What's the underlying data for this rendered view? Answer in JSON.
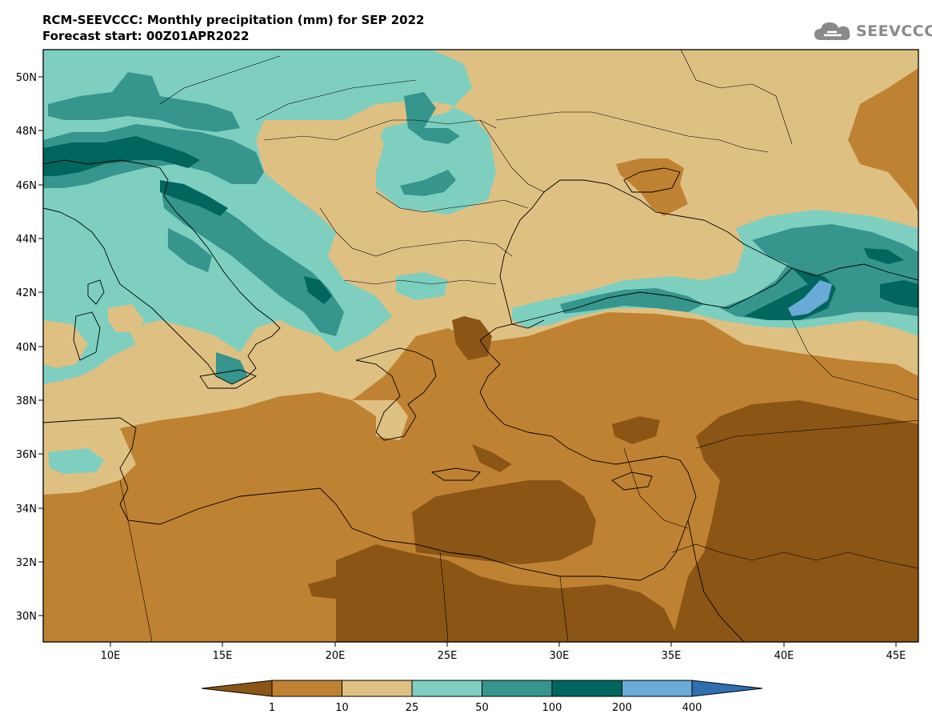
{
  "header": {
    "title_line1": "RCM-SEEVCCC: Monthly precipitation (mm) for SEP 2022",
    "title_line2": "Forecast start: 00Z01APR2022"
  },
  "logo": {
    "text": "SEEVCCC",
    "icon": "cloud-icon"
  },
  "map": {
    "lat_labels": [
      "50N",
      "48N",
      "46N",
      "44N",
      "42N",
      "40N",
      "38N",
      "36N",
      "34N",
      "32N",
      "30N"
    ],
    "lon_labels": [
      "10E",
      "15E",
      "20E",
      "25E",
      "30E",
      "35E",
      "40E",
      "45E"
    ]
  },
  "colorbar": {
    "levels": [
      "1",
      "10",
      "25",
      "50",
      "100",
      "200",
      "400"
    ],
    "colors": [
      "#8a5515",
      "#bf8232",
      "#dfc083",
      "#7ecfc0",
      "#36958d",
      "#01665e",
      "#6aaad6",
      "#2f6fb0"
    ]
  }
}
